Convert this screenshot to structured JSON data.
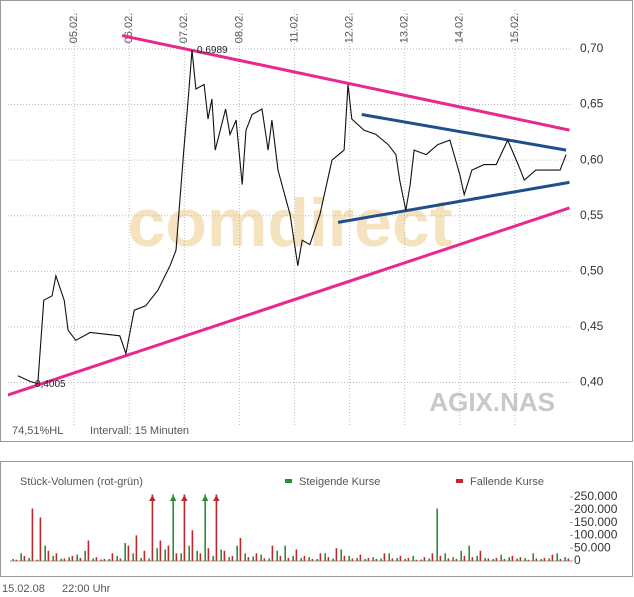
{
  "chart_data": [
    {
      "type": "line",
      "watermark": "comdirect",
      "symbol": "AGIX.NAS",
      "footnotes": [
        "74,51%HL",
        "Intervall: 15 Minuten"
      ],
      "x_labels": [
        "05.02.",
        "06.02.",
        "07.02.",
        "08.02.",
        "11.02.",
        "12.02.",
        "13.02.",
        "14.02.",
        "15.02."
      ],
      "xlim": [
        -0.2,
        10
      ],
      "xticks": [
        1,
        2,
        3,
        4,
        5,
        6,
        7,
        8,
        9
      ],
      "ylim": [
        0.36,
        0.735
      ],
      "yticks": [
        {
          "value": 0.4,
          "label": "0,40"
        },
        {
          "value": 0.45,
          "label": "0,45"
        },
        {
          "value": 0.5,
          "label": "0,50"
        },
        {
          "value": 0.55,
          "label": "0,55"
        },
        {
          "value": 0.6,
          "label": "0,60"
        },
        {
          "value": 0.65,
          "label": "0,65"
        },
        {
          "value": 0.7,
          "label": "0,70"
        }
      ],
      "grid": true,
      "color": "#111111",
      "x": [
        -0.02,
        0.2,
        0.34,
        0.45,
        0.6,
        0.67,
        0.82,
        0.89,
        1.03,
        1.29,
        1.83,
        1.94,
        2.09,
        2.3,
        2.52,
        2.74,
        2.85,
        2.92,
        2.99,
        3.07,
        3.14,
        3.21,
        3.36,
        3.43,
        3.5,
        3.56,
        3.75,
        3.83,
        3.94,
        4.05,
        4.12,
        4.23,
        4.41,
        4.52,
        4.59,
        4.7,
        4.92,
        5.06,
        5.14,
        5.28,
        5.46,
        5.68,
        5.9,
        5.97,
        6.04,
        6.26,
        6.48,
        6.7,
        6.84,
        6.91,
        7.02,
        7.1,
        7.17,
        7.39,
        7.6,
        7.82,
        8.0,
        8.08,
        8.22,
        8.44,
        8.66,
        8.87,
        9.06,
        9.17,
        9.38,
        9.6,
        9.82,
        9.93
      ],
      "values": [
        0.406,
        0.401,
        0.399,
        0.474,
        0.478,
        0.496,
        0.474,
        0.447,
        0.438,
        0.445,
        0.442,
        0.426,
        0.465,
        0.469,
        0.483,
        0.505,
        0.519,
        0.564,
        0.609,
        0.655,
        0.6989,
        0.664,
        0.668,
        0.637,
        0.655,
        0.609,
        0.646,
        0.623,
        0.636,
        0.578,
        0.627,
        0.641,
        0.646,
        0.609,
        0.636,
        0.591,
        0.551,
        0.505,
        0.528,
        0.524,
        0.551,
        0.6,
        0.609,
        0.668,
        0.637,
        0.627,
        0.623,
        0.614,
        0.605,
        0.582,
        0.555,
        0.578,
        0.609,
        0.605,
        0.614,
        0.618,
        0.587,
        0.569,
        0.591,
        0.596,
        0.596,
        0.618,
        0.596,
        0.582,
        0.591,
        0.591,
        0.591,
        0.605
      ],
      "annotations": [
        {
          "text": "0,6989",
          "x": 3.14,
          "value": 0.6989
        },
        {
          "text": "0,4005",
          "x": 0.2,
          "value": 0.401
        }
      ],
      "trendlines": [
        {
          "color": "#e8288c",
          "x": [
            1.87,
            9.99
          ],
          "values": [
            0.712,
            0.627
          ]
        },
        {
          "color": "#e8288c",
          "x": [
            -0.25,
            9.99
          ],
          "values": [
            0.388,
            0.557
          ]
        },
        {
          "color": "#1f4e8c",
          "x": [
            6.22,
            9.93
          ],
          "values": [
            0.641,
            0.609
          ]
        },
        {
          "color": "#1f4e8c",
          "x": [
            5.79,
            9.99
          ],
          "values": [
            0.544,
            0.58
          ]
        }
      ]
    },
    {
      "type": "bar",
      "title": "Stück-Volumen (rot-grün)",
      "ylim": [
        0,
        250000
      ],
      "yticks": [
        0,
        {
          "value": 50000,
          "label": "50.000"
        },
        {
          "value": 100000,
          "label": "100.000"
        },
        {
          "value": 150000,
          "label": "150.000"
        },
        {
          "value": 200000,
          "label": "200.000"
        },
        {
          "value": 250000,
          "label": "250.000"
        }
      ],
      "series": [
        {
          "name": "Steigende Kurse",
          "color": "#2e8b3a",
          "values": [
            8000,
            30000,
            12000,
            5000,
            60000,
            20000,
            9000,
            15000,
            25000,
            40000,
            10000,
            6000,
            8000,
            20000,
            70000,
            30000,
            12000,
            10000,
            50000,
            45000,
            260000,
            30000,
            60000,
            40000,
            260000,
            20000,
            45000,
            15000,
            60000,
            30000,
            18000,
            25000,
            10000,
            40000,
            60000,
            20000,
            12000,
            15000,
            8000,
            30000,
            10000,
            45000,
            20000,
            12000,
            8000,
            15000,
            10000,
            30000,
            12000,
            9000,
            20000,
            6000,
            10000,
            205000,
            30000,
            15000,
            40000,
            60000,
            20000,
            12000,
            8000,
            25000,
            15000,
            10000,
            12000,
            30000,
            8000,
            10000,
            30000,
            15000
          ]
        },
        {
          "name": "Fallende Kurse",
          "color": "#c0262c",
          "values": [
            5000,
            20000,
            205000,
            170000,
            40000,
            30000,
            10000,
            20000,
            12000,
            80000,
            15000,
            8000,
            30000,
            10000,
            60000,
            100000,
            40000,
            260000,
            80000,
            60000,
            30000,
            260000,
            120000,
            30000,
            50000,
            260000,
            40000,
            20000,
            90000,
            15000,
            30000,
            10000,
            60000,
            20000,
            12000,
            45000,
            20000,
            8000,
            30000,
            15000,
            50000,
            20000,
            10000,
            25000,
            12000,
            8000,
            30000,
            10000,
            20000,
            12000,
            5000,
            15000,
            30000,
            20000,
            10000,
            8000,
            20000,
            15000,
            40000,
            10000,
            12000,
            8000,
            20000,
            15000,
            5000,
            10000,
            12000,
            25000,
            8000,
            10000
          ]
        }
      ],
      "footer": [
        "15.02.08",
        "22:00 Uhr"
      ]
    }
  ]
}
